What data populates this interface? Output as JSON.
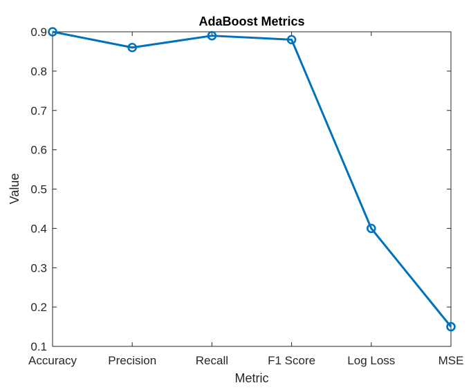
{
  "chart_data": {
    "type": "line",
    "title": "AdaBoost Metrics",
    "xlabel": "Metric",
    "ylabel": "Value",
    "categories": [
      "Accuracy",
      "Precision",
      "Recall",
      "F1 Score",
      "Log Loss",
      "MSE"
    ],
    "series": [
      {
        "values": [
          0.9,
          0.86,
          0.89,
          0.88,
          0.4,
          0.15
        ],
        "color": "#0072bd",
        "marker": "circle"
      }
    ],
    "ylim": [
      0.1,
      0.9
    ],
    "yticks": [
      "0.1",
      "0.2",
      "0.3",
      "0.4",
      "0.5",
      "0.6",
      "0.7",
      "0.8",
      "0.9"
    ],
    "grid": true,
    "legend": "none"
  }
}
